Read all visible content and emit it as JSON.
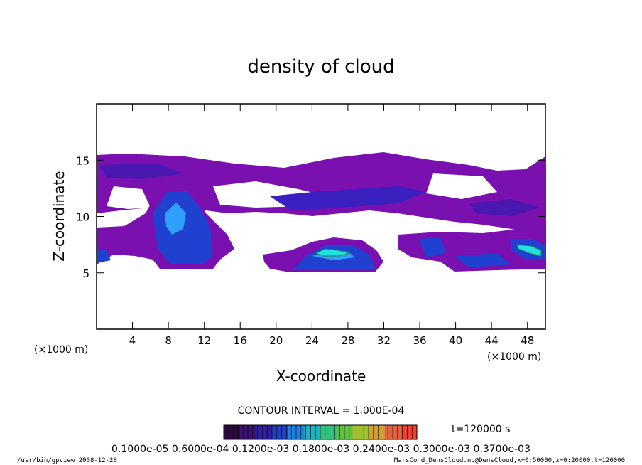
{
  "chart_data": {
    "type": "heatmap",
    "title": "density of cloud",
    "xlabel": "X-coordinate",
    "ylabel": "Z-coordinate",
    "x_unit": "(×1000 m)",
    "y_unit": "(×1000 m)",
    "xlim": [
      0,
      50
    ],
    "ylim": [
      0,
      20
    ],
    "x_ticks": [
      "4",
      "8",
      "12",
      "16",
      "20",
      "24",
      "28",
      "32",
      "36",
      "40",
      "44",
      "48"
    ],
    "y_ticks": [
      "5",
      "10",
      "15"
    ],
    "contour_interval_text": "CONTOUR INTERVAL = 1.000E-04",
    "time_label": "t=120000 s",
    "colorbar_labels": "0.1000e-05 0.6000e-04 0.1200e-03 0.1800e-03 0.2400e-03 0.3000e-03 0.3700e-03",
    "colorbar_colors": [
      "#2a0a3c",
      "#3a1070",
      "#3020a0",
      "#2040c0",
      "#2080e0",
      "#20b0c0",
      "#30c080",
      "#60c040",
      "#a0c030",
      "#d0a030",
      "#e06040",
      "#f04030"
    ],
    "value_range": [
      1e-06,
      0.00037
    ],
    "grid": false,
    "colors": {
      "purple": "#7a10b0",
      "dark_purple": "#5010a0",
      "blue": "#2040d0",
      "light_blue": "#30a0ff",
      "cyan": "#20e0e0",
      "green": "#20c060"
    },
    "regions": [
      {
        "name": "upper band",
        "level": "low",
        "x": [
          0,
          50
        ],
        "z": [
          9.5,
          15.5
        ]
      },
      {
        "name": "lower left cloud",
        "level": "mid",
        "x": [
          6,
          15
        ],
        "z": [
          5.5,
          13
        ]
      },
      {
        "name": "lower center cloud",
        "level": "high",
        "x": [
          21,
          30
        ],
        "z": [
          5.5,
          7.5
        ]
      },
      {
        "name": "right edge cloud",
        "level": "high",
        "x": [
          46,
          50
        ],
        "z": [
          6.5,
          8
        ]
      }
    ]
  },
  "footer": {
    "left": "/usr/bin/gpview   2008-12-28",
    "right": "MarsCond_DensCloud.nc@DensCloud,x=0:50000,z=0:20000,t=120000"
  }
}
